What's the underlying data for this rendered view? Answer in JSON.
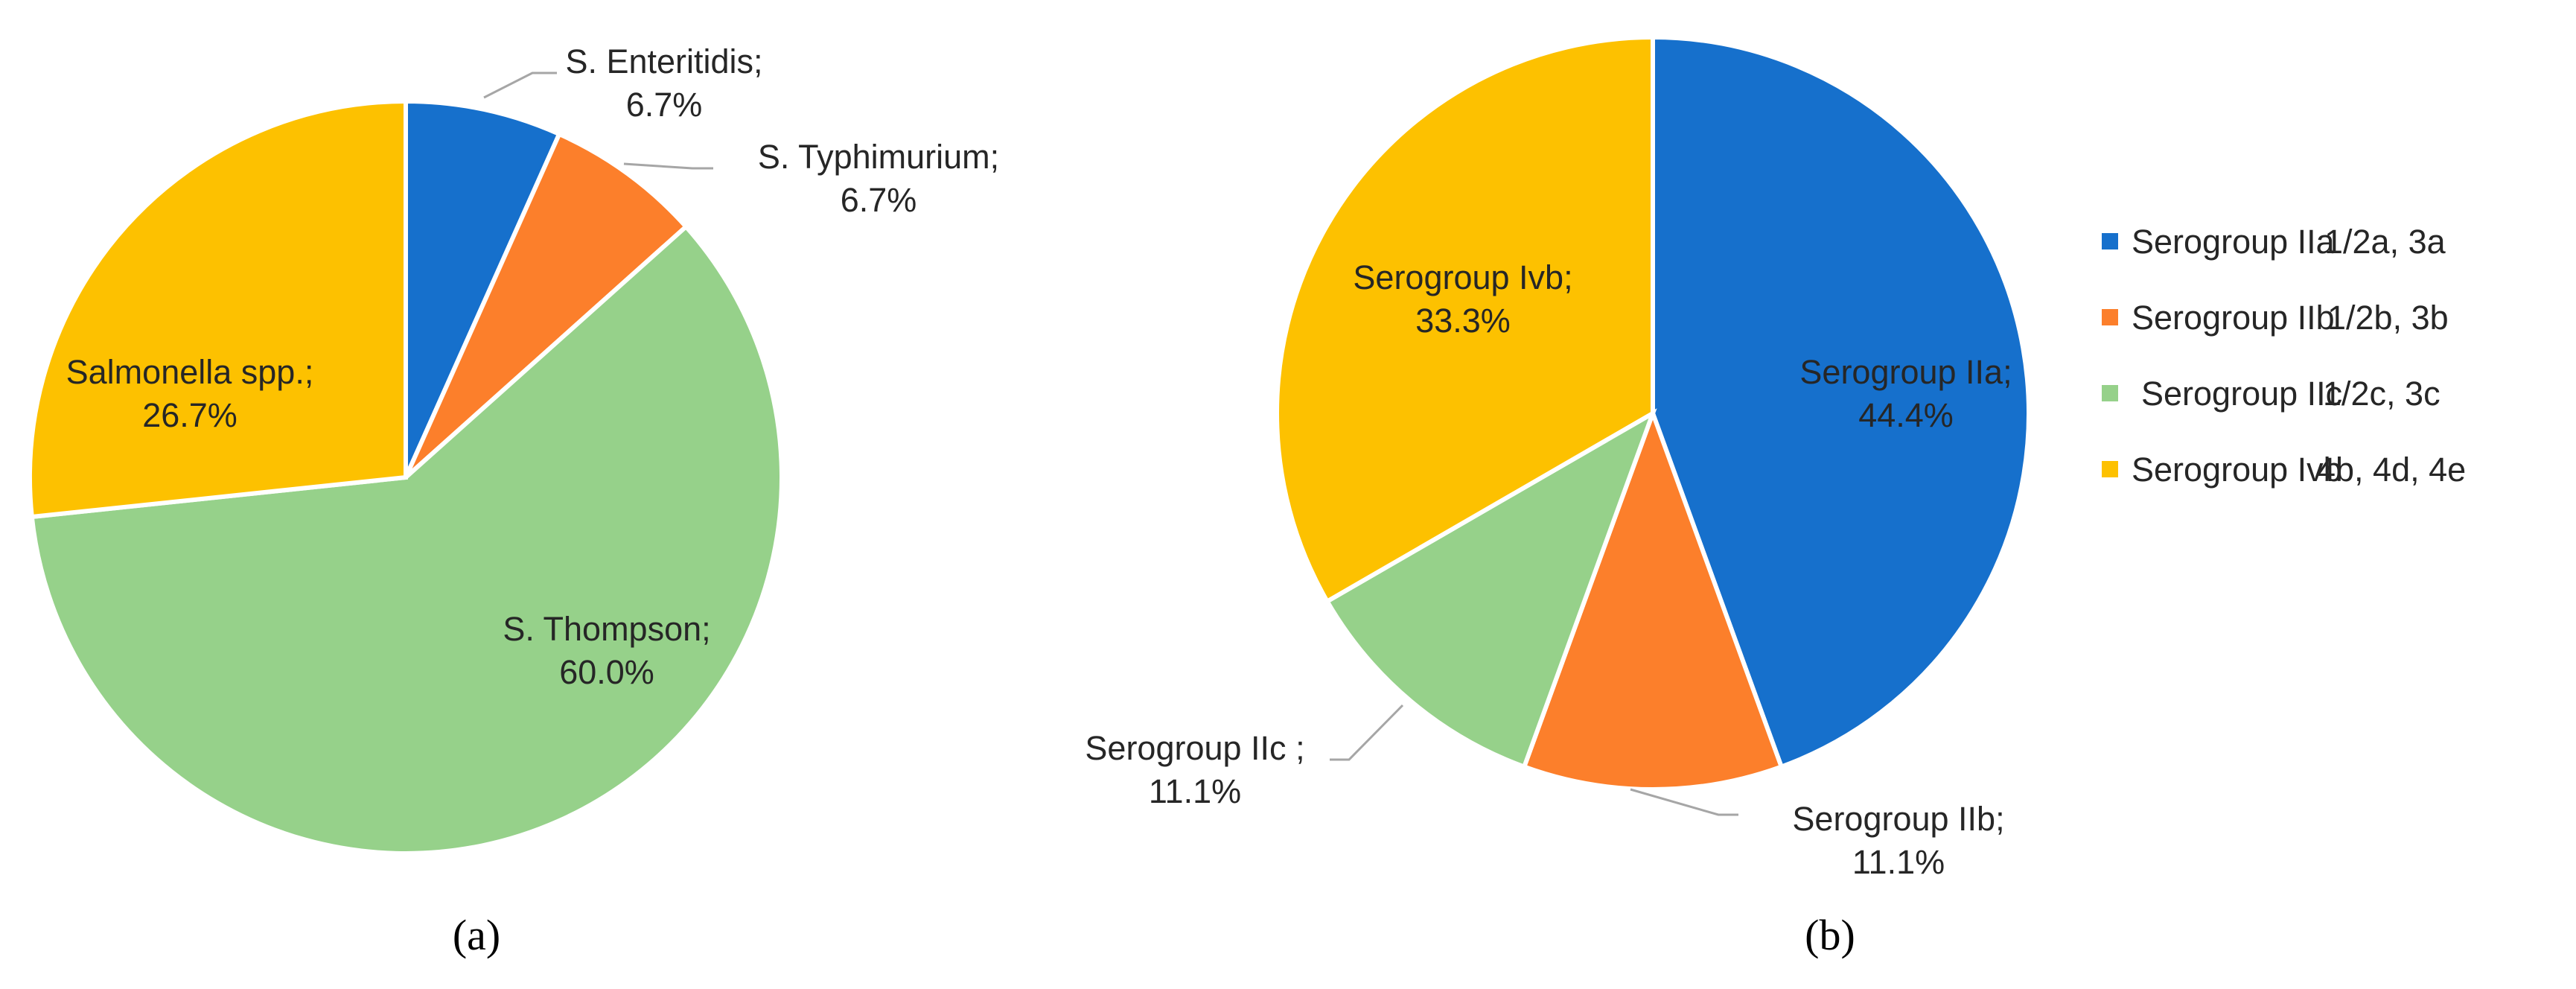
{
  "chart_data": [
    {
      "type": "pie",
      "panel_label": "(a)",
      "slices": [
        {
          "label": "S. Enteritidis;",
          "value_label": "6.7%",
          "value": 6.7,
          "color": "#1670cc"
        },
        {
          "label": "S. Typhimurium;",
          "value_label": "6.7%",
          "value": 6.7,
          "color": "#fc7f2b"
        },
        {
          "label": "S. Thompson;",
          "value_label": "60.0%",
          "value": 60.0,
          "color": "#96d18a"
        },
        {
          "label": "Salmonella spp.;",
          "value_label": "26.7%",
          "value": 26.7,
          "color": "#fdc100"
        }
      ]
    },
    {
      "type": "pie",
      "panel_label": "(b)",
      "legend_position": "right",
      "slices": [
        {
          "label": "Serogroup IIa;",
          "value_label": "44.4%",
          "value": 44.4,
          "color": "#1670cc",
          "legend": "Serogroup IIa",
          "legend_detail": "1/2a, 3a"
        },
        {
          "label": "Serogroup IIb;",
          "value_label": "11.1%",
          "value": 11.1,
          "color": "#fc7f2b",
          "legend": "Serogroup IIb",
          "legend_detail": "1/2b, 3b"
        },
        {
          "label": "Serogroup IIc ;",
          "value_label": "11.1%",
          "value": 11.1,
          "color": "#96d18a",
          "legend": "Serogroup IIc",
          "legend_detail": "1/2c, 3c"
        },
        {
          "label": "Serogroup Ivb;",
          "value_label": "33.3%",
          "value": 33.3,
          "color": "#fdc100",
          "legend": "Serogroup Ivb",
          "legend_detail": "4b, 4d, 4e"
        }
      ]
    }
  ]
}
